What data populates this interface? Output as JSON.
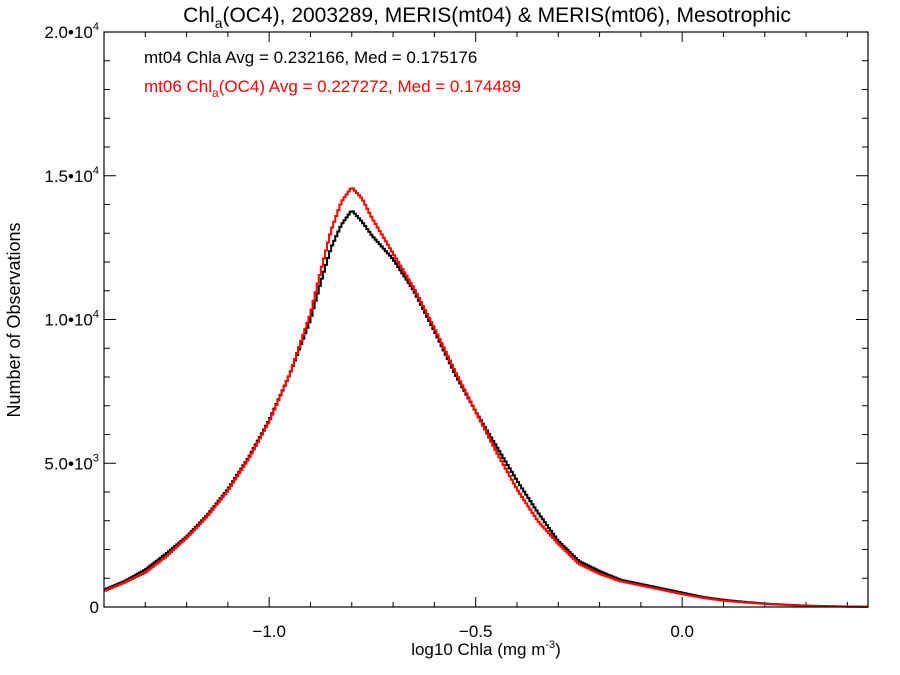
{
  "chart_data": {
    "type": "line",
    "title": {
      "prefix": "Chl",
      "sub": "a",
      "suffix": "(OC4), 2003289, MERIS(mt04) & MERIS(mt06), Mesotrophic"
    },
    "xlabel": {
      "main": "log10 Chla (mg m",
      "sup": "-3",
      "end": ")"
    },
    "ylabel": "Number of Observations",
    "xlim": [
      -1.4,
      0.45
    ],
    "ylim": [
      0,
      20000
    ],
    "x_ticks": [
      {
        "value": -1.0,
        "label": "−1.0"
      },
      {
        "value": -0.5,
        "label": "−0.5"
      },
      {
        "value": 0.0,
        "label": "0.0"
      }
    ],
    "y_ticks": [
      {
        "value": 0,
        "mant": "0",
        "exp": ""
      },
      {
        "value": 5000,
        "mant": "5.0•10",
        "exp": "3"
      },
      {
        "value": 10000,
        "mant": "1.0•10",
        "exp": "4"
      },
      {
        "value": 15000,
        "mant": "1.5•10",
        "exp": "4"
      },
      {
        "value": 20000,
        "mant": "2.0•10",
        "exp": "4"
      }
    ],
    "annotations": [
      {
        "series": 0,
        "text": "mt04 Chla Avg = 0.232166, Med = 0.175176"
      },
      {
        "series": 1,
        "pre": "mt06 Chl",
        "sub": "a",
        "post": "(OC4) Avg = 0.227272, Med = 0.174489"
      }
    ],
    "series": [
      {
        "color": "#000000",
        "x": [
          -1.4,
          -1.35,
          -1.3,
          -1.25,
          -1.2,
          -1.15,
          -1.1,
          -1.05,
          -1.0,
          -0.95,
          -0.9,
          -0.875,
          -0.85,
          -0.825,
          -0.8,
          -0.775,
          -0.75,
          -0.725,
          -0.7,
          -0.65,
          -0.6,
          -0.55,
          -0.5,
          -0.45,
          -0.4,
          -0.35,
          -0.3,
          -0.25,
          -0.2,
          -0.15,
          -0.1,
          -0.05,
          0.0,
          0.05,
          0.1,
          0.15,
          0.2,
          0.25,
          0.3,
          0.35,
          0.4,
          0.45
        ],
        "y": [
          600,
          900,
          1300,
          1850,
          2450,
          3200,
          4100,
          5200,
          6500,
          8100,
          10000,
          11300,
          12500,
          13300,
          13800,
          13400,
          12900,
          12500,
          12100,
          11000,
          9600,
          8100,
          6800,
          5600,
          4400,
          3300,
          2300,
          1600,
          1250,
          950,
          800,
          650,
          500,
          350,
          250,
          180,
          120,
          80,
          50,
          30,
          15,
          8
        ]
      },
      {
        "color": "#ff0000",
        "x": [
          -1.4,
          -1.35,
          -1.3,
          -1.25,
          -1.2,
          -1.15,
          -1.1,
          -1.05,
          -1.0,
          -0.95,
          -0.9,
          -0.875,
          -0.85,
          -0.825,
          -0.8,
          -0.775,
          -0.75,
          -0.725,
          -0.7,
          -0.65,
          -0.6,
          -0.55,
          -0.5,
          -0.45,
          -0.4,
          -0.35,
          -0.3,
          -0.25,
          -0.2,
          -0.15,
          -0.1,
          -0.05,
          0.0,
          0.05,
          0.1,
          0.15,
          0.2,
          0.25,
          0.3,
          0.35,
          0.4,
          0.45
        ],
        "y": [
          550,
          850,
          1200,
          1750,
          2400,
          3150,
          4050,
          5150,
          6450,
          8100,
          10200,
          11700,
          13100,
          14100,
          14600,
          14200,
          13500,
          12900,
          12300,
          11100,
          9700,
          8200,
          6800,
          5400,
          4100,
          3000,
          2200,
          1500,
          1150,
          900,
          750,
          600,
          450,
          320,
          220,
          160,
          110,
          70,
          45,
          25,
          12,
          6
        ]
      }
    ]
  }
}
